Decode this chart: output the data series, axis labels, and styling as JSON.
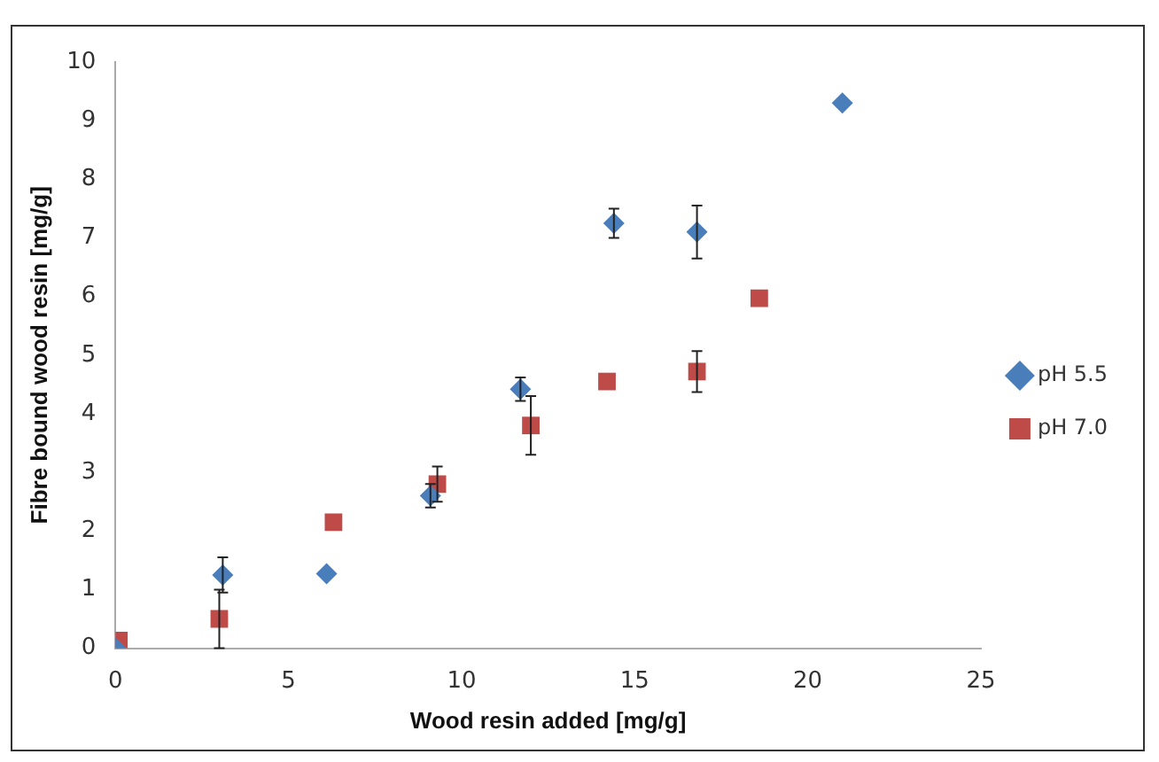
{
  "chart_data": {
    "type": "scatter",
    "xlabel": "Wood resin added [mg/g]",
    "ylabel": "Fibre bound wood resin [mg/g]",
    "xlim": [
      0,
      25
    ],
    "xticks": [
      0,
      5,
      10,
      15,
      20,
      25
    ],
    "ylim": [
      0,
      10
    ],
    "yticks": [
      0,
      1,
      2,
      3,
      4,
      5,
      6,
      7,
      8,
      9,
      10
    ],
    "grid": false,
    "legend": "right",
    "series": [
      {
        "name": "pH 5.5",
        "color": "#4a7ebb",
        "marker": "diamond",
        "x": [
          0,
          3.1,
          6.1,
          9.1,
          11.7,
          14.4,
          16.8,
          21.0
        ],
        "values": [
          0,
          1.25,
          1.27,
          2.6,
          4.42,
          7.25,
          7.1,
          9.3
        ],
        "errors": [
          null,
          0.3,
          null,
          0.2,
          0.2,
          0.25,
          0.45,
          null
        ]
      },
      {
        "name": "pH 7.0",
        "color": "#be4b48",
        "marker": "square",
        "x": [
          0.1,
          3.0,
          6.3,
          9.3,
          12.0,
          14.2,
          16.8,
          18.6
        ],
        "values": [
          0.13,
          0.5,
          2.15,
          2.8,
          3.8,
          4.55,
          4.72,
          5.97
        ],
        "errors": [
          null,
          0.5,
          null,
          0.3,
          0.5,
          null,
          0.35,
          null
        ]
      }
    ]
  }
}
